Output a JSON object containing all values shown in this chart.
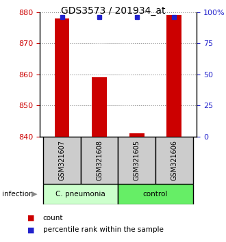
{
  "title": "GDS3573 / 201934_at",
  "samples": [
    "GSM321607",
    "GSM321608",
    "GSM321605",
    "GSM321606"
  ],
  "bar_values": [
    878,
    859,
    841,
    879
  ],
  "baseline": 840,
  "percentile_values": [
    96,
    96,
    96,
    96
  ],
  "ylim_left": [
    840,
    880
  ],
  "ylim_right": [
    0,
    100
  ],
  "yticks_left": [
    840,
    850,
    860,
    870,
    880
  ],
  "yticks_right": [
    0,
    25,
    50,
    75,
    100
  ],
  "bar_color": "#cc0000",
  "percentile_color": "#2222cc",
  "left_tick_color": "#cc0000",
  "right_tick_color": "#2222cc",
  "group_cp_color": "#ccffcc",
  "group_ctrl_color": "#66ee66",
  "sample_box_color": "#cccccc",
  "legend_count_color": "#cc0000",
  "legend_pct_color": "#2222cc",
  "dotted_grid_color": "#888888",
  "bar_width": 0.4
}
